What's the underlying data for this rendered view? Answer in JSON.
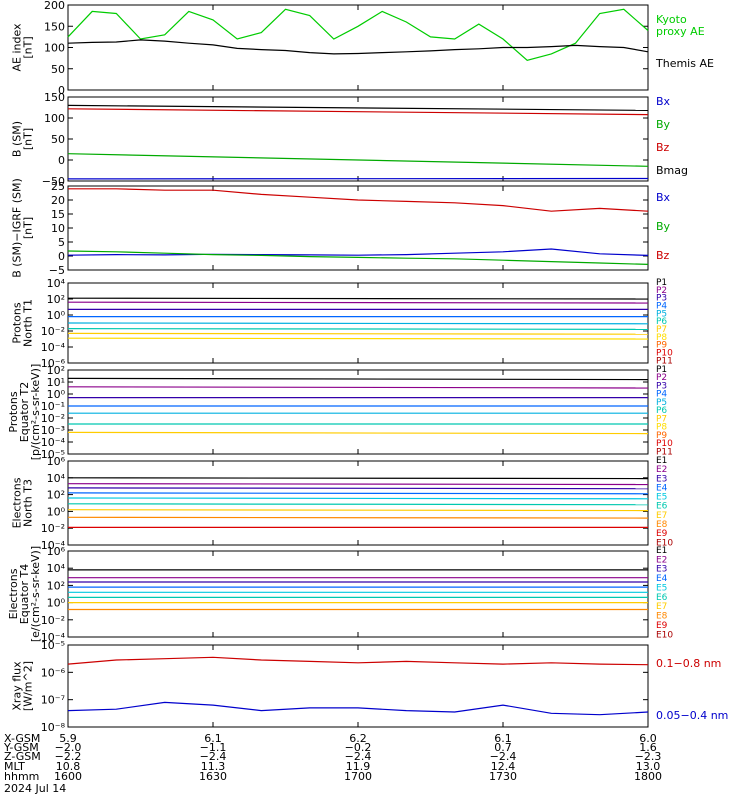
{
  "x_axis": {
    "times_min": [
      960,
      990,
      1020,
      1050,
      1080
    ],
    "ticks": [
      {
        "xgsm": "5.9",
        "ygsm": "−2.0",
        "zgsm": "−2.2",
        "mlt": "10.8",
        "hhmm": "1600"
      },
      {
        "xgsm": "6.1",
        "ygsm": "−1.1",
        "zgsm": "−2.4",
        "mlt": "11.3",
        "hhmm": "1630"
      },
      {
        "xgsm": "6.2",
        "ygsm": "−0.2",
        "zgsm": "−2.4",
        "mlt": "11.9",
        "hhmm": "1700"
      },
      {
        "xgsm": "6.1",
        "ygsm": "0.7",
        "zgsm": "−2.4",
        "mlt": "12.4",
        "hhmm": "1730"
      },
      {
        "xgsm": "6.0",
        "ygsm": "1.6",
        "zgsm": "−2.3",
        "mlt": "13.0",
        "hhmm": "1800"
      }
    ],
    "row_labels": [
      "X-GSM",
      "Y-GSM",
      "Z-GSM",
      "MLT",
      "hhmm"
    ],
    "date": "2024 Jul 14"
  },
  "panels": [
    {
      "ylabel": [
        "AE index",
        "[nT]"
      ],
      "ylim": [
        0,
        200
      ],
      "log": false,
      "ticks": [
        0,
        50,
        100,
        150,
        200
      ],
      "tick_labels": [
        "0",
        "50",
        "100",
        "150",
        "200"
      ],
      "legend": [
        {
          "name": "Kyoto",
          "color": "#00cc00"
        },
        {
          "name": "proxy AE",
          "color": "#00cc00"
        },
        {
          "name": "",
          "color": "#000000"
        },
        {
          "name": "Themis AE",
          "color": "#000000"
        }
      ]
    },
    {
      "ylabel": [
        "B (SM)",
        "[nT]"
      ],
      "ylim": [
        -50,
        150
      ],
      "log": false,
      "ticks": [
        -50,
        0,
        50,
        100,
        150
      ],
      "tick_labels": [
        "−50",
        "0",
        "50",
        "100",
        "150"
      ],
      "legend": [
        {
          "name": "Bx",
          "color": "#0000cc"
        },
        {
          "name": "By",
          "color": "#00aa00"
        },
        {
          "name": "Bz",
          "color": "#cc0000"
        },
        {
          "name": "Bmag",
          "color": "#000000"
        }
      ]
    },
    {
      "ylabel": [
        "B (SM)−IGRF (SM)",
        "[nT]"
      ],
      "ylim": [
        -5,
        25
      ],
      "log": false,
      "ticks": [
        -5,
        0,
        5,
        10,
        15,
        20,
        25
      ],
      "tick_labels": [
        "−5",
        "0",
        "5",
        "10",
        "15",
        "20",
        "25"
      ],
      "legend": [
        {
          "name": "Bx",
          "color": "#0000cc"
        },
        {
          "name": "By",
          "color": "#00aa00"
        },
        {
          "name": "Bz",
          "color": "#cc0000"
        }
      ]
    },
    {
      "ylabel": [
        "Protons",
        "North T1"
      ],
      "ylim": [
        -6,
        4
      ],
      "log": true,
      "ticks": [
        -6,
        -4,
        -2,
        0,
        2,
        4
      ],
      "tick_labels": [
        "10⁻⁶",
        "10⁻⁴",
        "10⁻²",
        "10⁰",
        "10²",
        "10⁴"
      ],
      "legend": [
        {
          "name": "P1",
          "color": "#000000"
        },
        {
          "name": "P2",
          "color": "#8b008b"
        },
        {
          "name": "P3",
          "color": "#3300aa"
        },
        {
          "name": "P4",
          "color": "#0066ff"
        },
        {
          "name": "P5",
          "color": "#00b0e0"
        },
        {
          "name": "P6",
          "color": "#00c8b0"
        },
        {
          "name": "P7",
          "color": "#ffcc00"
        },
        {
          "name": "P8",
          "color": "#ffdd00"
        },
        {
          "name": "P9",
          "color": "#ff6600"
        },
        {
          "name": "P10",
          "color": "#dd0000"
        },
        {
          "name": "P11",
          "color": "#aa0000"
        }
      ]
    },
    {
      "ylabel": [
        "Protons",
        "Equator T2",
        "[p/(cm²-s-sr-keV)]"
      ],
      "ylim": [
        -5,
        2
      ],
      "log": true,
      "ticks": [
        -5,
        -4,
        -3,
        -2,
        -1,
        0,
        1,
        2
      ],
      "tick_labels": [
        "10⁻⁵",
        "10⁻⁴",
        "10⁻³",
        "10⁻²",
        "10⁻¹",
        "10⁰",
        "10¹",
        "10²"
      ],
      "legend": [
        {
          "name": "P1",
          "color": "#000000"
        },
        {
          "name": "P2",
          "color": "#8b008b"
        },
        {
          "name": "P3",
          "color": "#3300aa"
        },
        {
          "name": "P4",
          "color": "#0066ff"
        },
        {
          "name": "P5",
          "color": "#00b0e0"
        },
        {
          "name": "P6",
          "color": "#00c8b0"
        },
        {
          "name": "P7",
          "color": "#ffcc00"
        },
        {
          "name": "P8",
          "color": "#ffdd00"
        },
        {
          "name": "P9",
          "color": "#ff6600"
        },
        {
          "name": "P10",
          "color": "#dd0000"
        },
        {
          "name": "P11",
          "color": "#aa0000"
        }
      ]
    },
    {
      "ylabel": [
        "Electrons",
        "North T3"
      ],
      "ylim": [
        -4,
        6
      ],
      "log": true,
      "ticks": [
        -4,
        -2,
        0,
        2,
        4,
        6
      ],
      "tick_labels": [
        "10⁻⁴",
        "10⁻²",
        "10⁰",
        "10²",
        "10⁴",
        "10⁶"
      ],
      "legend": [
        {
          "name": "E1",
          "color": "#000000"
        },
        {
          "name": "E2",
          "color": "#8b008b"
        },
        {
          "name": "E3",
          "color": "#3300aa"
        },
        {
          "name": "E4",
          "color": "#0066ff"
        },
        {
          "name": "E5",
          "color": "#00c8e0"
        },
        {
          "name": "E6",
          "color": "#00c8b0"
        },
        {
          "name": "E7",
          "color": "#ffcc00"
        },
        {
          "name": "E8",
          "color": "#ff8800"
        },
        {
          "name": "E9",
          "color": "#dd0000"
        },
        {
          "name": "E10",
          "color": "#aa0000"
        }
      ]
    },
    {
      "ylabel": [
        "Electrons",
        "Equator T4",
        "[e/(cm²-s-sr-keV)]"
      ],
      "ylim": [
        -4,
        6
      ],
      "log": true,
      "ticks": [
        -4,
        -2,
        0,
        2,
        4,
        6
      ],
      "tick_labels": [
        "10⁻⁴",
        "10⁻²",
        "10⁰",
        "10²",
        "10⁴",
        "10⁶"
      ],
      "legend": [
        {
          "name": "E1",
          "color": "#000000"
        },
        {
          "name": "E2",
          "color": "#8b008b"
        },
        {
          "name": "E3",
          "color": "#3300aa"
        },
        {
          "name": "E4",
          "color": "#0066ff"
        },
        {
          "name": "E5",
          "color": "#00c8e0"
        },
        {
          "name": "E6",
          "color": "#00c8b0"
        },
        {
          "name": "E7",
          "color": "#ffcc00"
        },
        {
          "name": "E8",
          "color": "#ff8800"
        },
        {
          "name": "E9",
          "color": "#dd0000"
        },
        {
          "name": "E10",
          "color": "#aa0000"
        }
      ]
    },
    {
      "ylabel": [
        "Xray flux",
        "[W/m^2]"
      ],
      "ylim": [
        -8,
        -5
      ],
      "log": true,
      "ticks": [
        -8,
        -7,
        -6,
        -5
      ],
      "tick_labels": [
        "10⁻⁸",
        "10⁻⁷",
        "10⁻⁶",
        "10⁻⁵"
      ],
      "legend": [
        {
          "name": "0.1−0.8 nm",
          "color": "#cc0000"
        },
        {
          "name": "0.05−0.4 nm",
          "color": "#0000cc"
        }
      ]
    }
  ],
  "chart_data": [
    {
      "type": "line",
      "title": "",
      "xlabel": "",
      "ylabel": "AE index [nT]",
      "ylim": [
        0,
        200
      ],
      "x": [
        960,
        965,
        970,
        975,
        980,
        985,
        990,
        995,
        1000,
        1005,
        1010,
        1015,
        1020,
        1025,
        1030,
        1035,
        1040,
        1045,
        1050,
        1055,
        1060,
        1065,
        1070,
        1075,
        1080
      ],
      "series": [
        {
          "name": "Kyoto proxy AE",
          "color": "#00cc00",
          "values": [
            125,
            185,
            180,
            120,
            130,
            185,
            165,
            120,
            135,
            190,
            175,
            120,
            150,
            185,
            160,
            125,
            120,
            155,
            120,
            70,
            85,
            110,
            180,
            190,
            140
          ]
        },
        {
          "name": "Themis AE",
          "color": "#000000",
          "values": [
            110,
            112,
            113,
            118,
            115,
            110,
            106,
            98,
            95,
            93,
            88,
            85,
            86,
            88,
            90,
            92,
            95,
            97,
            100,
            100,
            102,
            105,
            102,
            100,
            90
          ]
        }
      ]
    },
    {
      "type": "line",
      "title": "",
      "xlabel": "",
      "ylabel": "B (SM) [nT]",
      "ylim": [
        -50,
        150
      ],
      "x": [
        960,
        1080
      ],
      "series": [
        {
          "name": "Bx",
          "color": "#0000cc",
          "values": [
            -45,
            -44
          ]
        },
        {
          "name": "By",
          "color": "#00aa00",
          "values": [
            15,
            -15
          ]
        },
        {
          "name": "Bz",
          "color": "#cc0000",
          "values": [
            122,
            108
          ]
        },
        {
          "name": "Bmag",
          "color": "#000000",
          "values": [
            130,
            118
          ]
        }
      ]
    },
    {
      "type": "line",
      "title": "",
      "xlabel": "",
      "ylabel": "B (SM)−IGRF (SM) [nT]",
      "ylim": [
        -5,
        25
      ],
      "x": [
        960,
        970,
        980,
        990,
        1000,
        1010,
        1020,
        1030,
        1040,
        1050,
        1060,
        1070,
        1080
      ],
      "series": [
        {
          "name": "Bx",
          "color": "#0000cc",
          "values": [
            0.3,
            0.5,
            0.4,
            0.6,
            0.5,
            0.4,
            0.3,
            0.5,
            1.0,
            1.5,
            2.5,
            0.8,
            0.2
          ]
        },
        {
          "name": "By",
          "color": "#00aa00",
          "values": [
            1.8,
            1.5,
            1.0,
            0.5,
            0.2,
            -0.2,
            -0.5,
            -0.8,
            -1.0,
            -1.5,
            -2.0,
            -2.5,
            -3.0
          ]
        },
        {
          "name": "Bz",
          "color": "#cc0000",
          "values": [
            24,
            24,
            23.5,
            23.5,
            22,
            21,
            20,
            19.5,
            19,
            18,
            16,
            17,
            16
          ]
        }
      ]
    },
    {
      "type": "line",
      "title": "",
      "xlabel": "",
      "ylabel": "Protons North T1 (log10 flux)",
      "ylim": [
        -6,
        4
      ],
      "x": [
        960,
        1080
      ],
      "series": [
        {
          "name": "P1",
          "color": "#000000",
          "values": [
            2.1,
            2.0
          ]
        },
        {
          "name": "P2",
          "color": "#8b008b",
          "values": [
            1.6,
            1.5
          ]
        },
        {
          "name": "P3",
          "color": "#3300aa",
          "values": [
            0.7,
            0.7
          ]
        },
        {
          "name": "P4",
          "color": "#0066ff",
          "values": [
            -0.2,
            -0.2
          ]
        },
        {
          "name": "P5",
          "color": "#00b0e0",
          "values": [
            -1.0,
            -1.1
          ]
        },
        {
          "name": "P6",
          "color": "#00c8b0",
          "values": [
            -1.7,
            -1.8
          ]
        },
        {
          "name": "P7",
          "color": "#ffcc00",
          "values": [
            -2.3,
            -2.4
          ]
        },
        {
          "name": "P8",
          "color": "#ffdd00",
          "values": [
            -2.9,
            -3.0
          ]
        }
      ]
    },
    {
      "type": "line",
      "title": "",
      "xlabel": "",
      "ylabel": "Protons Equator T2 (log10 flux)",
      "ylim": [
        -5,
        2
      ],
      "x": [
        960,
        1080
      ],
      "series": [
        {
          "name": "P1",
          "color": "#000000",
          "values": [
            1.3,
            1.2
          ]
        },
        {
          "name": "P2",
          "color": "#8b008b",
          "values": [
            0.6,
            0.5
          ]
        },
        {
          "name": "P3",
          "color": "#3300aa",
          "values": [
            -0.3,
            -0.3
          ]
        },
        {
          "name": "P4",
          "color": "#0066ff",
          "values": [
            -1.0,
            -1.0
          ]
        },
        {
          "name": "P5",
          "color": "#00b0e0",
          "values": [
            -1.6,
            -1.6
          ]
        },
        {
          "name": "P6",
          "color": "#00c8b0",
          "values": [
            -2.5,
            -2.5
          ]
        },
        {
          "name": "P7",
          "color": "#ffcc00",
          "values": [
            -3.2,
            -3.3
          ]
        }
      ]
    },
    {
      "type": "line",
      "title": "",
      "xlabel": "",
      "ylabel": "Electrons North T3 (log10 flux)",
      "ylim": [
        -4,
        6
      ],
      "x": [
        960,
        1080
      ],
      "series": [
        {
          "name": "E1",
          "color": "#000000",
          "values": [
            4.0,
            3.9
          ]
        },
        {
          "name": "E2",
          "color": "#8b008b",
          "values": [
            3.3,
            3.2
          ]
        },
        {
          "name": "E3",
          "color": "#3300aa",
          "values": [
            2.8,
            2.7
          ]
        },
        {
          "name": "E4",
          "color": "#0066ff",
          "values": [
            2.2,
            2.1
          ]
        },
        {
          "name": "E5",
          "color": "#00c8e0",
          "values": [
            1.6,
            1.5
          ]
        },
        {
          "name": "E6",
          "color": "#00c8b0",
          "values": [
            0.9,
            0.8
          ]
        },
        {
          "name": "E7",
          "color": "#ffcc00",
          "values": [
            0.2,
            0.1
          ]
        },
        {
          "name": "E8",
          "color": "#ff8800",
          "values": [
            -0.7,
            -0.8
          ]
        },
        {
          "name": "E9",
          "color": "#dd0000",
          "values": [
            -1.9,
            -1.9
          ]
        }
      ]
    },
    {
      "type": "line",
      "title": "",
      "xlabel": "",
      "ylabel": "Electrons Equator T4 (log10 flux)",
      "ylim": [
        -4,
        6
      ],
      "x": [
        960,
        1080
      ],
      "series": [
        {
          "name": "E1",
          "color": "#000000",
          "values": [
            3.8,
            3.8
          ]
        },
        {
          "name": "E2",
          "color": "#8b008b",
          "values": [
            2.9,
            2.9
          ]
        },
        {
          "name": "E3",
          "color": "#3300aa",
          "values": [
            2.4,
            2.4
          ]
        },
        {
          "name": "E4",
          "color": "#0066ff",
          "values": [
            1.8,
            1.8
          ]
        },
        {
          "name": "E5",
          "color": "#00c8e0",
          "values": [
            1.2,
            1.2
          ]
        },
        {
          "name": "E6",
          "color": "#00c8b0",
          "values": [
            0.6,
            0.6
          ]
        },
        {
          "name": "E7",
          "color": "#ffcc00",
          "values": [
            0.0,
            0.0
          ]
        },
        {
          "name": "E8",
          "color": "#ff8800",
          "values": [
            -0.8,
            -0.8
          ]
        }
      ]
    },
    {
      "type": "line",
      "title": "",
      "xlabel": "",
      "ylabel": "Xray flux [W/m^2] (log10)",
      "ylim": [
        -8,
        -5
      ],
      "x": [
        960,
        970,
        980,
        990,
        1000,
        1010,
        1020,
        1030,
        1040,
        1050,
        1060,
        1070,
        1080
      ],
      "series": [
        {
          "name": "0.1−0.8 nm",
          "color": "#cc0000",
          "values": [
            -5.7,
            -5.55,
            -5.5,
            -5.45,
            -5.55,
            -5.6,
            -5.65,
            -5.6,
            -5.65,
            -5.7,
            -5.65,
            -5.7,
            -5.72
          ]
        },
        {
          "name": "0.05−0.4 nm",
          "color": "#0000cc",
          "values": [
            -7.4,
            -7.35,
            -7.1,
            -7.2,
            -7.4,
            -7.3,
            -7.3,
            -7.4,
            -7.45,
            -7.2,
            -7.5,
            -7.55,
            -7.45
          ]
        }
      ]
    }
  ]
}
